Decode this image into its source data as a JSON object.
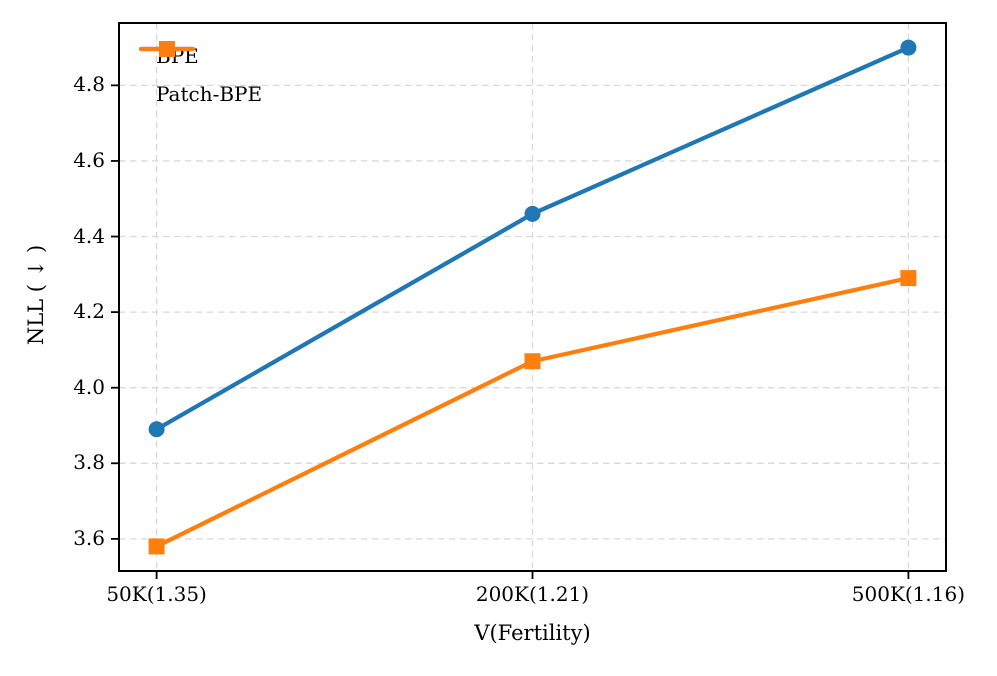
{
  "figure": {
    "background": "#ffffff"
  },
  "chart_data": {
    "type": "line",
    "title": "",
    "xlabel": "V(Fertility)",
    "ylabel": "NLL ( ↓ )",
    "categories": [
      "50K(1.35)",
      "200K(1.21)",
      "500K(1.16)"
    ],
    "series": [
      {
        "name": "BPE",
        "values": [
          3.89,
          4.46,
          4.9
        ],
        "color": "#1f77b4",
        "marker": "circle"
      },
      {
        "name": "Patch-BPE",
        "values": [
          3.58,
          4.07,
          4.29
        ],
        "color": "#ff7f0e",
        "marker": "square"
      }
    ],
    "ylim": [
      3.515,
      4.965
    ],
    "yticks": [
      3.6,
      3.8,
      4.0,
      4.2,
      4.4,
      4.6,
      4.8
    ],
    "ytick_labels": [
      "3.6",
      "3.8",
      "4.0",
      "4.2",
      "4.4",
      "4.6",
      "4.8"
    ],
    "grid": true,
    "grid_color": "#d9d9d9",
    "axis_color": "#000000",
    "legend_position": "upper-left"
  }
}
